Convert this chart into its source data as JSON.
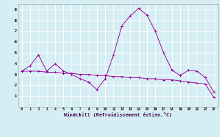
{
  "x": [
    0,
    1,
    2,
    3,
    4,
    5,
    6,
    7,
    8,
    9,
    10,
    11,
    12,
    13,
    14,
    15,
    16,
    17,
    18,
    19,
    20,
    21,
    22,
    23
  ],
  "line1": [
    3.3,
    3.8,
    4.8,
    3.3,
    4.0,
    3.3,
    3.0,
    2.6,
    2.3,
    1.6,
    2.6,
    4.8,
    7.5,
    8.4,
    9.1,
    8.5,
    7.0,
    5.0,
    3.4,
    2.9,
    3.4,
    3.3,
    2.7,
    1.4
  ],
  "line2": [
    3.3,
    3.3,
    3.3,
    3.2,
    3.2,
    3.1,
    3.1,
    3.0,
    3.0,
    2.9,
    2.9,
    2.8,
    2.8,
    2.7,
    2.7,
    2.6,
    2.6,
    2.5,
    2.5,
    2.4,
    2.3,
    2.2,
    2.1,
    0.9
  ],
  "color": "#990099",
  "bg_color": "#d4eef4",
  "grid_color": "#ffffff",
  "xlabel": "Windchill (Refroidissement éolien,°C)",
  "ylim": [
    0,
    9.5
  ],
  "xlim": [
    -0.5,
    23.5
  ],
  "yticks": [
    1,
    2,
    3,
    4,
    5,
    6,
    7,
    8,
    9
  ],
  "xticks": [
    0,
    1,
    2,
    3,
    4,
    5,
    6,
    7,
    8,
    9,
    10,
    11,
    12,
    13,
    14,
    15,
    16,
    17,
    18,
    19,
    20,
    21,
    22,
    23
  ]
}
